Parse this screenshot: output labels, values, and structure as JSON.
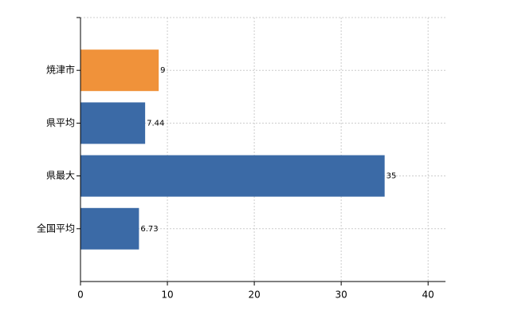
{
  "chart_data": {
    "type": "bar",
    "orientation": "horizontal",
    "categories": [
      "焼津市",
      "県平均",
      "県最大",
      "全国平均"
    ],
    "values": [
      9,
      7.44,
      35,
      6.73
    ],
    "colors": [
      "#f0923a",
      "#3b6aa6",
      "#3b6aa6",
      "#3b6aa6"
    ],
    "xlim": [
      0,
      42
    ],
    "xticks": [
      0,
      10,
      20,
      30,
      40
    ],
    "grid": true
  }
}
